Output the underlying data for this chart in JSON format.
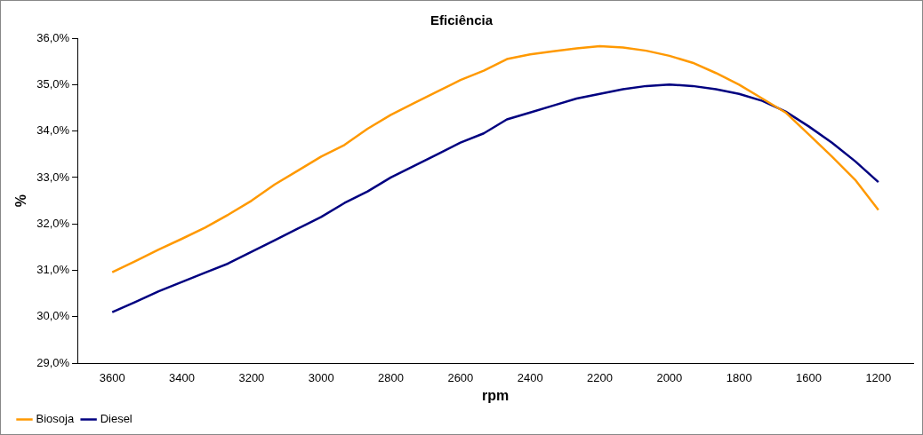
{
  "chart_data": {
    "type": "line",
    "title": "Eficiência",
    "xlabel": "rpm",
    "ylabel": "%",
    "categories": [
      null,
      "3600",
      null,
      null,
      "3400",
      null,
      null,
      "3200",
      null,
      null,
      "3000",
      null,
      null,
      "2800",
      null,
      null,
      "2600",
      null,
      null,
      "2400",
      null,
      null,
      "2200",
      null,
      null,
      "2000",
      null,
      null,
      "1800",
      null,
      null,
      "1600",
      null,
      null,
      "1200",
      null
    ],
    "series": [
      {
        "name": "Biosoja",
        "color": "#ff9900",
        "values": [
          null,
          30.96,
          31.2,
          31.45,
          31.68,
          31.92,
          32.2,
          32.5,
          32.85,
          33.15,
          33.45,
          33.7,
          34.05,
          34.35,
          34.6,
          34.85,
          35.1,
          35.3,
          35.55,
          35.65,
          35.72,
          35.78,
          35.83,
          35.8,
          35.73,
          35.62,
          35.47,
          35.25,
          35.0,
          34.7,
          34.4,
          33.93,
          33.45,
          32.95,
          32.3,
          null
        ]
      },
      {
        "name": "Diesel",
        "color": "#000080",
        "values": [
          null,
          30.1,
          30.32,
          30.55,
          30.75,
          30.95,
          31.15,
          31.4,
          31.65,
          31.9,
          32.15,
          32.45,
          32.7,
          33.0,
          33.25,
          33.5,
          33.75,
          33.95,
          34.25,
          34.4,
          34.55,
          34.7,
          34.8,
          34.9,
          34.97,
          35.0,
          34.97,
          34.9,
          34.8,
          34.65,
          34.42,
          34.1,
          33.75,
          33.35,
          32.9,
          null
        ]
      }
    ],
    "ylim": [
      29,
      36
    ],
    "yticks": [
      {
        "value": 29,
        "label": "29,0%"
      },
      {
        "value": 30,
        "label": "30,0%"
      },
      {
        "value": 31,
        "label": "31,0%"
      },
      {
        "value": 32,
        "label": "32,0%"
      },
      {
        "value": 33,
        "label": "33,0%"
      },
      {
        "value": 34,
        "label": "34,0%"
      },
      {
        "value": 35,
        "label": "35,0%"
      },
      {
        "value": 36,
        "label": "36,0%"
      }
    ],
    "grid": false,
    "legend": "bottom left",
    "marker": "none",
    "line_style": "solid"
  }
}
